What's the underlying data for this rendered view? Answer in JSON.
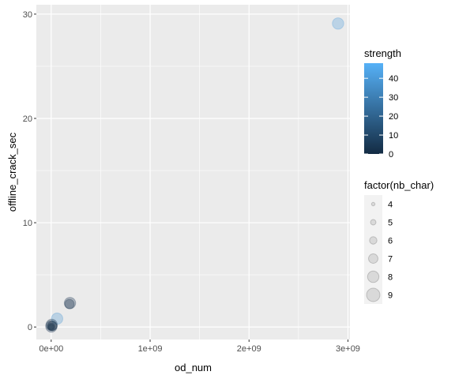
{
  "chart_data": {
    "type": "scatter",
    "title": "",
    "xlabel": "od_num",
    "ylabel": "offline_crack_sec",
    "xlim": [
      -150000000,
      3020000000
    ],
    "ylim": [
      -1.2,
      30.9
    ],
    "x_ticks": [
      {
        "value": 0,
        "label": "0e+00"
      },
      {
        "value": 1000000000,
        "label": "1e+09"
      },
      {
        "value": 2000000000,
        "label": "2e+09"
      },
      {
        "value": 3000000000,
        "label": "3e+09"
      }
    ],
    "y_ticks": [
      {
        "value": 0,
        "label": "0"
      },
      {
        "value": 10,
        "label": "10"
      },
      {
        "value": 20,
        "label": "20"
      },
      {
        "value": 30,
        "label": "30"
      }
    ],
    "x_minor": [
      500000000,
      1500000000,
      2500000000
    ],
    "y_minor": [
      5,
      15,
      25
    ],
    "grid": true,
    "points": [
      {
        "x": 2900000000,
        "y": 29.1,
        "strength": 40,
        "nb_char": 8
      },
      {
        "x": 60000000,
        "y": 0.8,
        "strength": 38,
        "nb_char": 8
      },
      {
        "x": 190000000,
        "y": 2.3,
        "strength": 4,
        "nb_char": 8
      },
      {
        "x": 185000000,
        "y": 2.2,
        "strength": 2,
        "nb_char": 7
      },
      {
        "x": 5000000,
        "y": 0.2,
        "strength": 2,
        "nb_char": 8
      },
      {
        "x": 2000000,
        "y": 0.05,
        "strength": 3,
        "nb_char": 8
      },
      {
        "x": 10000000,
        "y": 0.1,
        "strength": 1,
        "nb_char": 7
      },
      {
        "x": 1000000,
        "y": 0.02,
        "strength": 2,
        "nb_char": 6
      },
      {
        "x": 500000,
        "y": 0.01,
        "strength": 1,
        "nb_char": 5
      }
    ],
    "color_legend": {
      "title": "strength",
      "labels": [
        "40",
        "30",
        "20",
        "10",
        "0"
      ],
      "values": [
        40,
        30,
        20,
        10,
        0
      ],
      "range": [
        0,
        48
      ],
      "low_color": "#132B43",
      "high_color": "#56B1F7"
    },
    "size_legend": {
      "title": "factor(nb_char)",
      "items": [
        {
          "label": "4",
          "nb_char": 4
        },
        {
          "label": "5",
          "nb_char": 5
        },
        {
          "label": "6",
          "nb_char": 6
        },
        {
          "label": "7",
          "nb_char": 7
        },
        {
          "label": "8",
          "nb_char": 8
        },
        {
          "label": "9",
          "nb_char": 9
        }
      ]
    },
    "point_alpha": 0.3,
    "panel_color": "#EBEBEB",
    "grid_color": "#FFFFFF"
  }
}
